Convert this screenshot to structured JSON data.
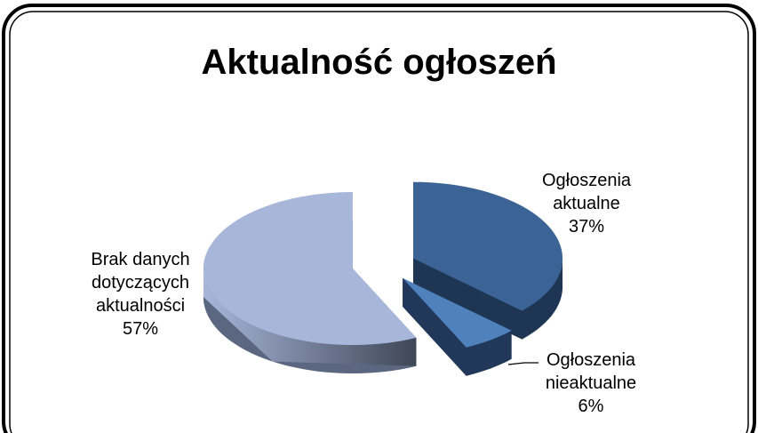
{
  "chart_data": {
    "type": "pie3d",
    "title": "Aktualność ogłoszeń",
    "categories": [
      "Ogłoszenia aktualne",
      "Ogłoszenia nieaktualne",
      "Brak danych dotyczących aktualności"
    ],
    "values": [
      37,
      6,
      57
    ],
    "value_labels": [
      "37%",
      "6%",
      "57%"
    ],
    "colors": [
      "#3c6396",
      "#4f81bd",
      "#a8b6da"
    ],
    "side_colors": [
      "#1e3553",
      "#21385a",
      "#5b6780"
    ]
  }
}
